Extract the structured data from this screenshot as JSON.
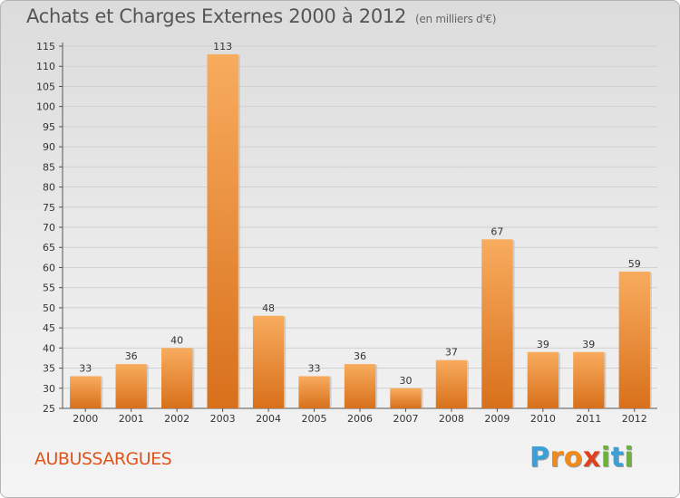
{
  "title": "Achats et Charges Externes 2000 à 2012",
  "subtitle": "(en milliers d'€)",
  "commune": "AUBUSSARGUES",
  "logo": {
    "letters": [
      "P",
      "r",
      "o",
      "x",
      "i",
      "t",
      "i"
    ],
    "colors": [
      "#3aa0d8",
      "#f08a1c",
      "#f08a1c",
      "#e0411c",
      "#6bb43a",
      "#3aa0d8",
      "#6bb43a"
    ]
  },
  "chart_data": {
    "type": "bar",
    "title": "Achats et Charges Externes 2000 à 2012",
    "categories": [
      "2000",
      "2001",
      "2002",
      "2003",
      "2004",
      "2005",
      "2006",
      "2007",
      "2008",
      "2009",
      "2010",
      "2011",
      "2012"
    ],
    "values": [
      33,
      36,
      40,
      113,
      48,
      33,
      36,
      30,
      37,
      67,
      39,
      39,
      59
    ],
    "ylim": [
      25,
      115
    ],
    "yticks": [
      25,
      30,
      35,
      40,
      45,
      50,
      55,
      60,
      65,
      70,
      75,
      80,
      85,
      90,
      95,
      100,
      105,
      110,
      115
    ],
    "grid": true,
    "bar_color_light": "#f7a85a",
    "bar_color_dark": "#d86f1a"
  }
}
